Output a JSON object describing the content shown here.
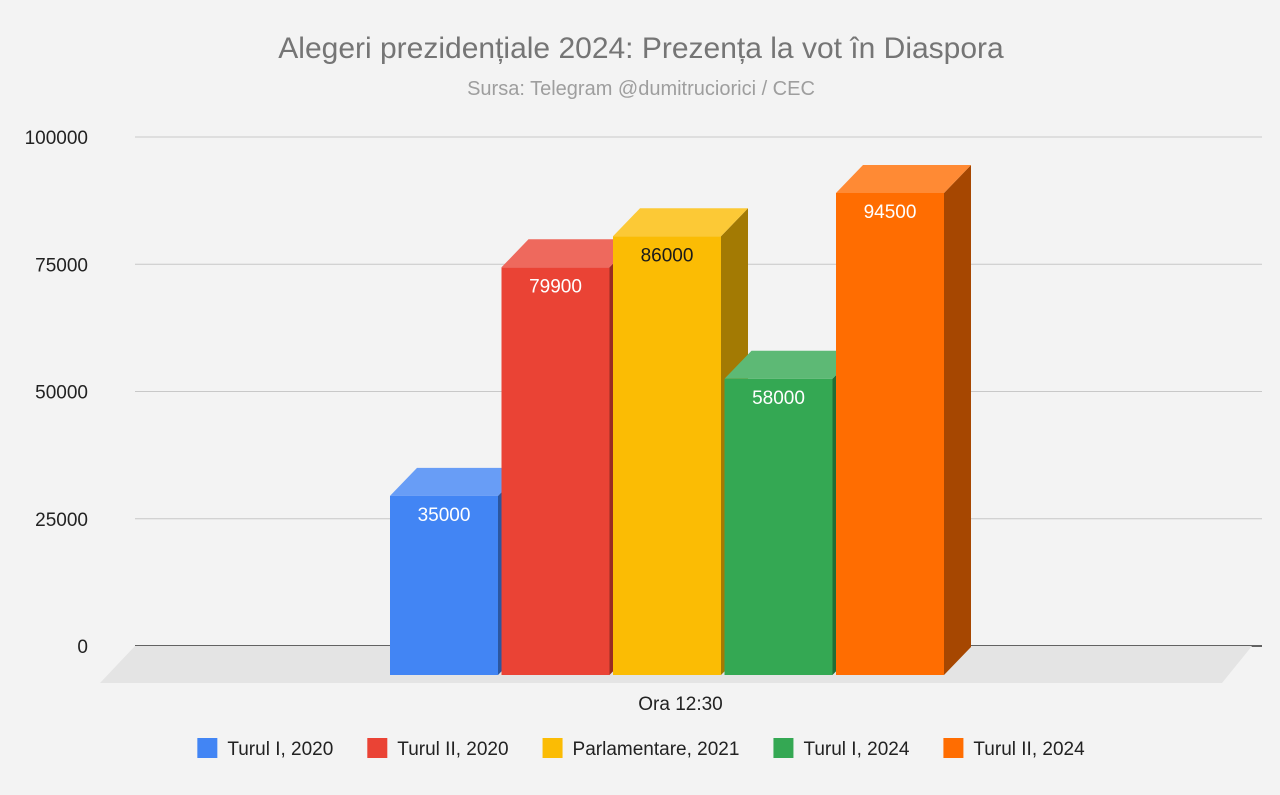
{
  "chart_data": {
    "type": "bar",
    "title": "Alegeri prezidențiale 2024: Prezența la vot în Diaspora",
    "subtitle": "Sursa: Telegram @dumitruciorici / CEC",
    "categories": [
      "Ora 12:30"
    ],
    "series": [
      {
        "name": "Turul I, 2020",
        "values": [
          35000
        ],
        "color": "#4285f4",
        "label_color": "#ffffff"
      },
      {
        "name": "Turul II, 2020",
        "values": [
          79900
        ],
        "color": "#ea4335",
        "label_color": "#ffffff"
      },
      {
        "name": "Parlamentare, 2021",
        "values": [
          86000
        ],
        "color": "#fbbc04",
        "label_color": "#1a1a1a"
      },
      {
        "name": "Turul I, 2024",
        "values": [
          58000
        ],
        "color": "#34a853",
        "label_color": "#ffffff"
      },
      {
        "name": "Turul II, 2024",
        "values": [
          94500
        ],
        "color": "#ff6d01",
        "label_color": "#ffffff"
      }
    ],
    "yticks": [
      "0",
      "25000",
      "50000",
      "75000",
      "100000"
    ],
    "ylim": [
      0,
      100000
    ],
    "xlabel": "",
    "ylabel": "",
    "grid": true,
    "legend": "bottom",
    "style": "3d"
  }
}
